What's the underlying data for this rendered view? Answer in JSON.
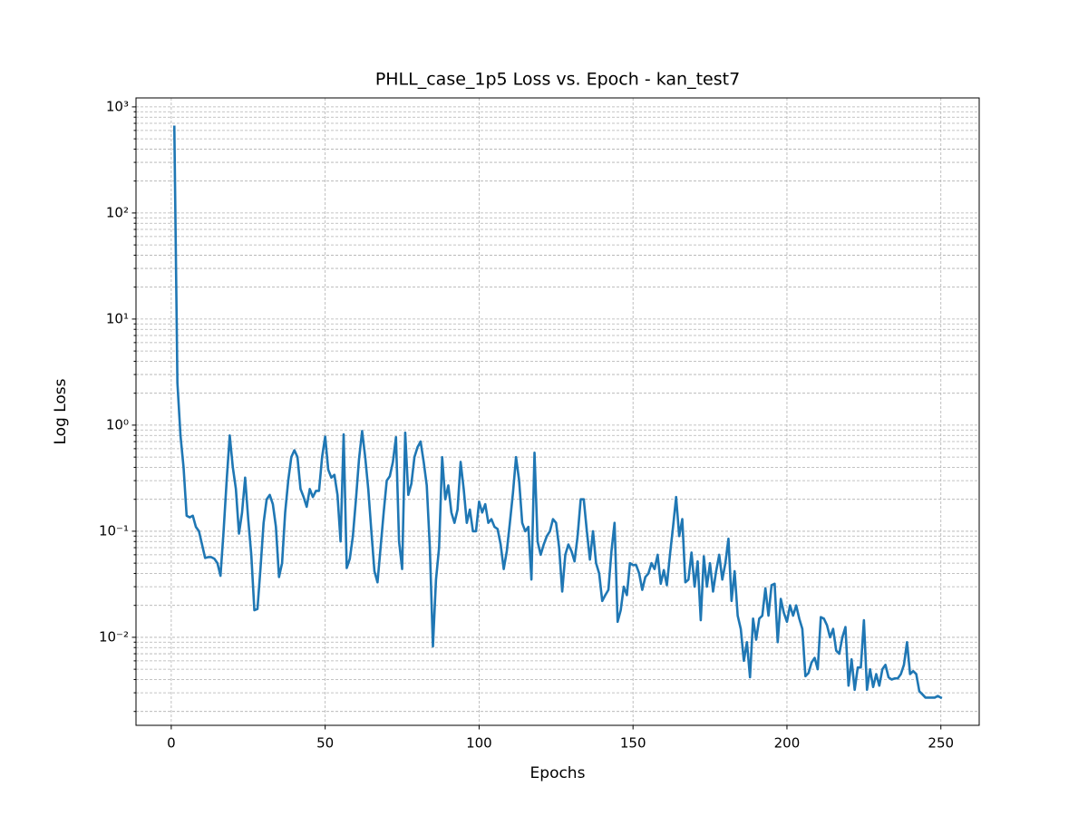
{
  "chart_data": {
    "type": "line",
    "title": "PHLL_case_1p5 Loss vs. Epoch - kan_test7",
    "x_label": "Epochs",
    "y_label": "Log Loss",
    "color": "#1f77b4",
    "log_y": true,
    "grid": true,
    "xlim": [
      -11.45,
      262.45
    ],
    "xticks": [
      0,
      50,
      100,
      150,
      200,
      250
    ],
    "ylim": [
      0.00148,
      1215
    ],
    "yticks": [
      {
        "value": 0.01,
        "label": "10⁻²"
      },
      {
        "value": 0.1,
        "label": "10⁻¹"
      },
      {
        "value": 1,
        "label": "10⁰"
      },
      {
        "value": 10,
        "label": "10¹"
      },
      {
        "value": 100,
        "label": "10²"
      },
      {
        "value": 1000,
        "label": "10³"
      }
    ],
    "yminorticks": [
      0.002,
      0.003,
      0.004,
      0.005,
      0.006,
      0.007,
      0.008,
      0.009,
      0.02,
      0.03,
      0.04,
      0.05,
      0.06,
      0.07,
      0.08,
      0.09,
      0.2,
      0.3,
      0.4,
      0.5,
      0.6,
      0.7,
      0.8,
      0.9,
      2,
      3,
      4,
      5,
      6,
      7,
      8,
      9,
      20,
      30,
      40,
      50,
      60,
      70,
      80,
      90,
      200,
      300,
      400,
      500,
      600,
      700,
      800,
      900
    ],
    "x": [
      1,
      2,
      3,
      4,
      5,
      6,
      7,
      8,
      9,
      10,
      11,
      12,
      13,
      14,
      15,
      16,
      17,
      18,
      19,
      20,
      21,
      22,
      23,
      24,
      25,
      26,
      27,
      28,
      29,
      30,
      31,
      32,
      33,
      34,
      35,
      36,
      37,
      38,
      39,
      40,
      41,
      42,
      43,
      44,
      45,
      46,
      47,
      48,
      49,
      50,
      51,
      52,
      53,
      54,
      55,
      56,
      57,
      58,
      59,
      60,
      61,
      62,
      63,
      64,
      65,
      66,
      67,
      68,
      69,
      70,
      71,
      72,
      73,
      74,
      75,
      76,
      77,
      78,
      79,
      80,
      81,
      82,
      83,
      84,
      85,
      86,
      87,
      88,
      89,
      90,
      91,
      92,
      93,
      94,
      95,
      96,
      97,
      98,
      99,
      100,
      101,
      102,
      103,
      104,
      105,
      106,
      107,
      108,
      109,
      110,
      111,
      112,
      113,
      114,
      115,
      116,
      117,
      118,
      119,
      120,
      121,
      122,
      123,
      124,
      125,
      126,
      127,
      128,
      129,
      130,
      131,
      132,
      133,
      134,
      135,
      136,
      137,
      138,
      139,
      140,
      141,
      142,
      143,
      144,
      145,
      146,
      147,
      148,
      149,
      150,
      151,
      152,
      153,
      154,
      155,
      156,
      157,
      158,
      159,
      160,
      161,
      162,
      163,
      164,
      165,
      166,
      167,
      168,
      169,
      170,
      171,
      172,
      173,
      174,
      175,
      176,
      177,
      178,
      179,
      180,
      181,
      182,
      183,
      184,
      185,
      186,
      187,
      188,
      189,
      190,
      191,
      192,
      193,
      194,
      195,
      196,
      197,
      198,
      199,
      200,
      201,
      202,
      203,
      204,
      205,
      206,
      207,
      208,
      209,
      210,
      211,
      212,
      213,
      214,
      215,
      216,
      217,
      218,
      219,
      220,
      221,
      222,
      223,
      224,
      225,
      226,
      227,
      228,
      229,
      230,
      231,
      232,
      233,
      234,
      235,
      236,
      237,
      238,
      239,
      240,
      241,
      242,
      243,
      244,
      245,
      246,
      247,
      248,
      249,
      250
    ],
    "values": [
      650,
      2.5,
      0.8,
      0.4,
      0.14,
      0.135,
      0.14,
      0.11,
      0.1,
      0.075,
      0.056,
      0.057,
      0.057,
      0.055,
      0.05,
      0.038,
      0.1,
      0.3,
      0.8,
      0.4,
      0.25,
      0.095,
      0.15,
      0.32,
      0.13,
      0.06,
      0.018,
      0.0185,
      0.045,
      0.12,
      0.2,
      0.22,
      0.18,
      0.11,
      0.037,
      0.05,
      0.15,
      0.3,
      0.5,
      0.58,
      0.5,
      0.25,
      0.21,
      0.17,
      0.25,
      0.21,
      0.24,
      0.24,
      0.5,
      0.78,
      0.38,
      0.32,
      0.34,
      0.22,
      0.08,
      0.82,
      0.045,
      0.055,
      0.09,
      0.2,
      0.48,
      0.88,
      0.5,
      0.25,
      0.1,
      0.042,
      0.033,
      0.07,
      0.15,
      0.3,
      0.33,
      0.45,
      0.77,
      0.08,
      0.044,
      0.85,
      0.22,
      0.28,
      0.5,
      0.62,
      0.7,
      0.45,
      0.27,
      0.07,
      0.0082,
      0.035,
      0.07,
      0.5,
      0.2,
      0.27,
      0.15,
      0.12,
      0.16,
      0.45,
      0.25,
      0.12,
      0.16,
      0.1,
      0.1,
      0.19,
      0.15,
      0.18,
      0.12,
      0.13,
      0.11,
      0.105,
      0.075,
      0.044,
      0.065,
      0.12,
      0.23,
      0.5,
      0.3,
      0.12,
      0.1,
      0.11,
      0.035,
      0.55,
      0.08,
      0.06,
      0.075,
      0.09,
      0.1,
      0.13,
      0.12,
      0.07,
      0.027,
      0.06,
      0.075,
      0.065,
      0.052,
      0.09,
      0.2,
      0.2,
      0.1,
      0.054,
      0.1,
      0.05,
      0.04,
      0.022,
      0.025,
      0.028,
      0.065,
      0.12,
      0.014,
      0.018,
      0.03,
      0.025,
      0.05,
      0.048,
      0.048,
      0.04,
      0.028,
      0.037,
      0.04,
      0.05,
      0.044,
      0.06,
      0.032,
      0.043,
      0.031,
      0.06,
      0.11,
      0.21,
      0.09,
      0.13,
      0.033,
      0.035,
      0.063,
      0.03,
      0.052,
      0.0145,
      0.058,
      0.03,
      0.05,
      0.027,
      0.042,
      0.06,
      0.035,
      0.05,
      0.085,
      0.022,
      0.042,
      0.016,
      0.012,
      0.006,
      0.009,
      0.0042,
      0.015,
      0.0095,
      0.015,
      0.016,
      0.029,
      0.016,
      0.031,
      0.032,
      0.009,
      0.023,
      0.017,
      0.014,
      0.02,
      0.016,
      0.02,
      0.015,
      0.012,
      0.0043,
      0.0046,
      0.0058,
      0.0064,
      0.005,
      0.0155,
      0.015,
      0.013,
      0.01,
      0.012,
      0.0075,
      0.007,
      0.01,
      0.0125,
      0.0035,
      0.0062,
      0.0032,
      0.0052,
      0.0052,
      0.0145,
      0.0032,
      0.005,
      0.0034,
      0.0045,
      0.0035,
      0.005,
      0.0055,
      0.0042,
      0.004,
      0.0041,
      0.0041,
      0.0045,
      0.0055,
      0.009,
      0.0045,
      0.0048,
      0.0045,
      0.0031,
      0.0029,
      0.0027,
      0.0027,
      0.0027,
      0.0027,
      0.0028,
      0.0027
    ]
  }
}
